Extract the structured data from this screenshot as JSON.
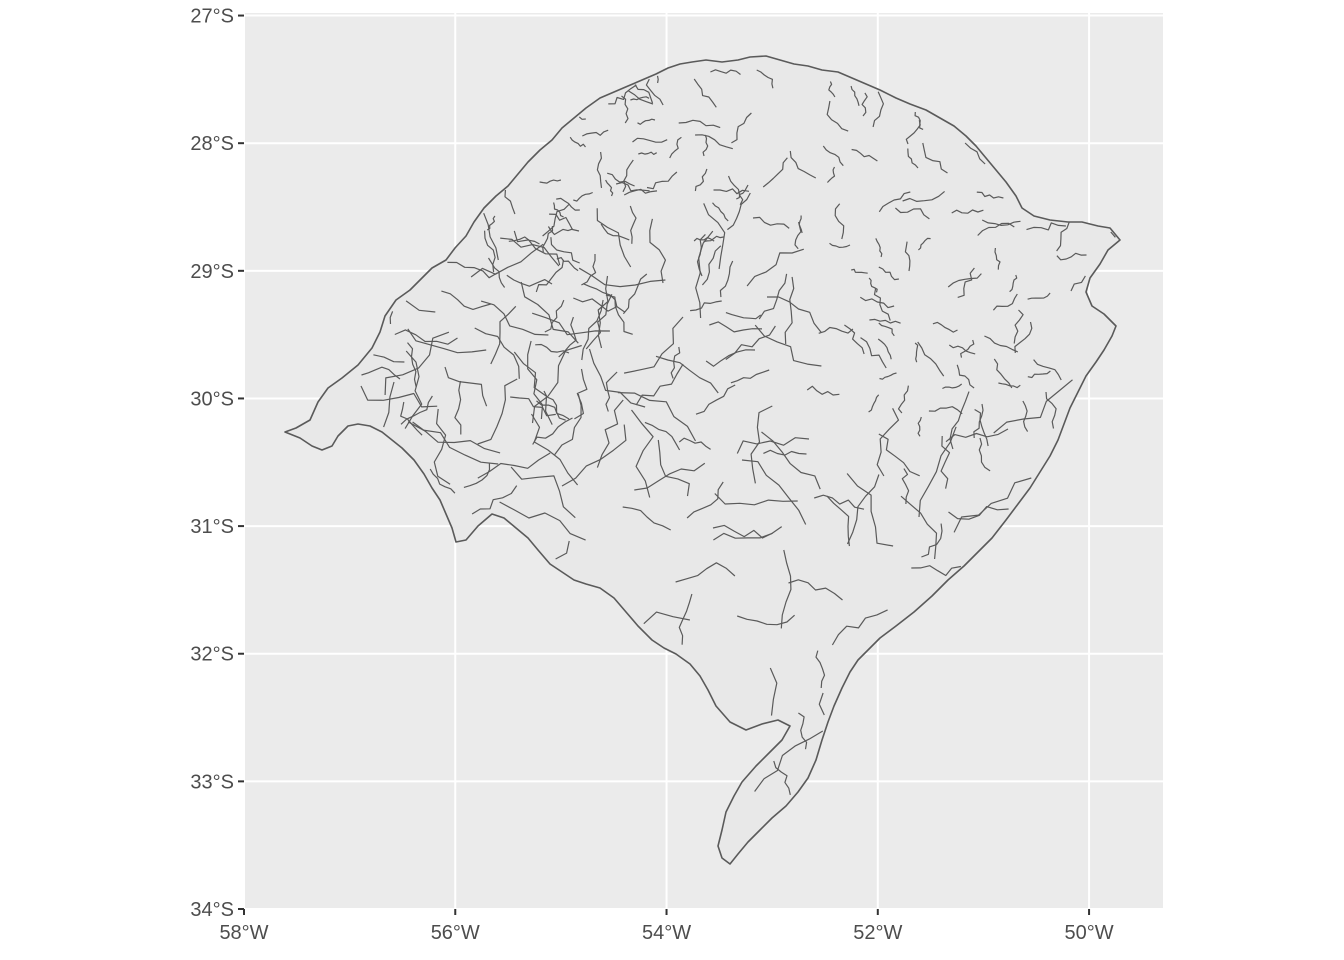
{
  "map": {
    "type": "choropleth-outline",
    "region_fill": "#e8e8e8",
    "border_color": "#5a5a5a",
    "panel_background": "#ebebeb",
    "grid_color": "#ffffff",
    "grid": true,
    "y_ticks": [
      {
        "value": -27,
        "label": "27°S"
      },
      {
        "value": -28,
        "label": "28°S"
      },
      {
        "value": -29,
        "label": "29°S"
      },
      {
        "value": -30,
        "label": "30°S"
      },
      {
        "value": -31,
        "label": "31°S"
      },
      {
        "value": -32,
        "label": "32°S"
      },
      {
        "value": -33,
        "label": "33°S"
      },
      {
        "value": -34,
        "label": "34°S"
      }
    ],
    "x_ticks": [
      {
        "value": -58,
        "label": "58°W"
      },
      {
        "value": -56,
        "label": "56°W"
      },
      {
        "value": -54,
        "label": "54°W"
      },
      {
        "value": -52,
        "label": "52°W"
      },
      {
        "value": -50,
        "label": "50°W"
      }
    ],
    "xlim": [
      -58.0,
      -49.3
    ],
    "ylim": [
      -34.0,
      -26.98
    ]
  }
}
